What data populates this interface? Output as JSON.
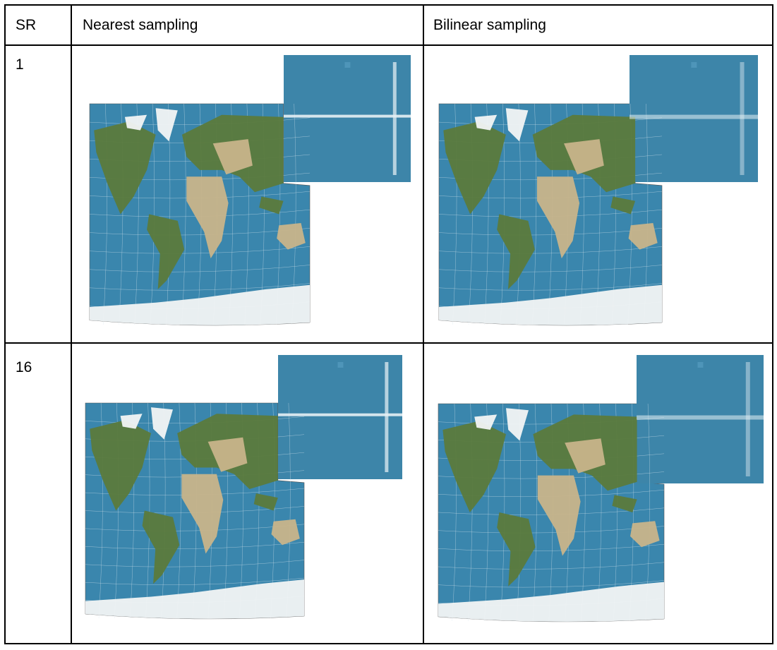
{
  "table": {
    "headers": [
      "SR",
      "Nearest sampling",
      "Bilinear sampling"
    ],
    "rows": [
      {
        "sr": "1",
        "cells": [
          {
            "image": "reprojected-world-map",
            "sampling": "nearest"
          },
          {
            "image": "reprojected-world-map",
            "sampling": "bilinear"
          }
        ]
      },
      {
        "sr": "16",
        "cells": [
          {
            "image": "reprojected-world-map",
            "sampling": "nearest"
          },
          {
            "image": "reprojected-world-map",
            "sampling": "bilinear"
          }
        ]
      }
    ]
  },
  "colors": {
    "ocean": "#3a86ad",
    "ocean_tile": "#3d85a9",
    "land_green": "#5b7a3c",
    "land_desert": "#c8b48a",
    "ice": "#f2f4f4",
    "grid": "#d8e6ee",
    "border": "#000000"
  }
}
